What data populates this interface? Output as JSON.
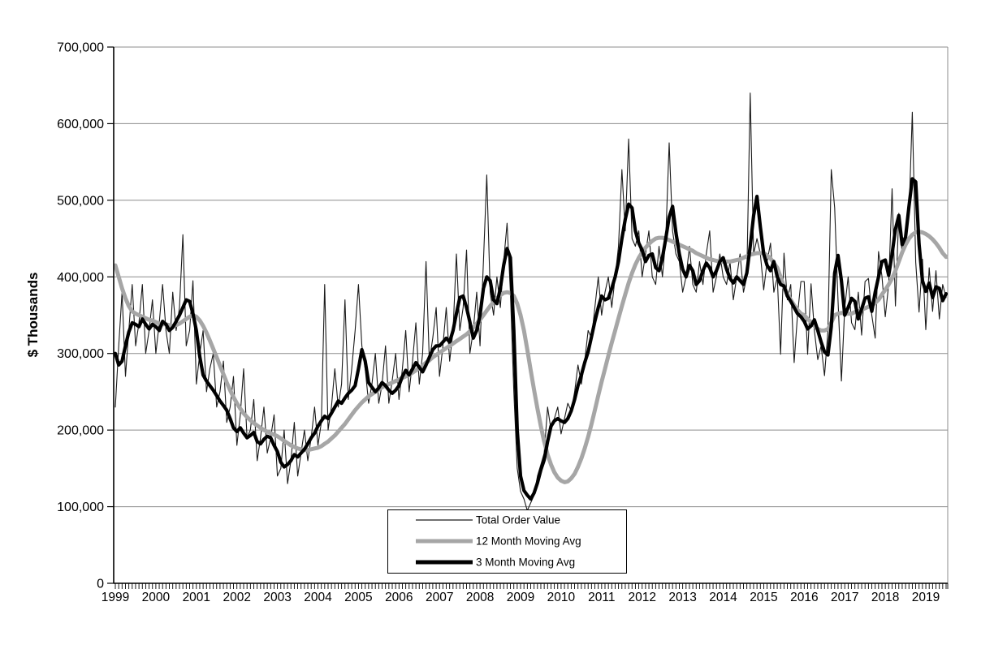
{
  "chart_data": {
    "type": "line",
    "title": "",
    "ylabel": "$ Thousands",
    "xlabel": "",
    "ylim": [
      0,
      700000
    ],
    "ytick_interval": 100000,
    "grid": "horizontal",
    "legend_position": "bottom-center-inside",
    "x_unit": "month",
    "x_start": "1999-01",
    "x_end": "2019-07",
    "n_points": 247,
    "x_tick_labels": [
      "1999",
      "2000",
      "2001",
      "2002",
      "2003",
      "2004",
      "2005",
      "2006",
      "2007",
      "2008",
      "2009",
      "2010",
      "2011",
      "2012",
      "2013",
      "2014",
      "2015",
      "2016",
      "2017",
      "2018",
      "2019"
    ],
    "series": [
      {
        "name": "Total Order Value",
        "color": "#1a1a1a",
        "width": 1.1,
        "values": [
          230000,
          310000,
          380000,
          270000,
          330000,
          390000,
          310000,
          340000,
          390000,
          300000,
          330000,
          370000,
          300000,
          340000,
          390000,
          330000,
          300000,
          380000,
          330000,
          360000,
          455000,
          310000,
          330000,
          395000,
          260000,
          300000,
          330000,
          250000,
          280000,
          300000,
          230000,
          250000,
          290000,
          210000,
          230000,
          270000,
          180000,
          220000,
          280000,
          190000,
          200000,
          240000,
          160000,
          190000,
          230000,
          170000,
          190000,
          220000,
          140000,
          150000,
          200000,
          130000,
          160000,
          210000,
          140000,
          170000,
          200000,
          160000,
          190000,
          230000,
          180000,
          210000,
          390000,
          200000,
          230000,
          280000,
          230000,
          260000,
          370000,
          240000,
          280000,
          330000,
          390000,
          310000,
          280000,
          235000,
          260000,
          300000,
          235000,
          260000,
          310000,
          235000,
          265000,
          300000,
          240000,
          280000,
          330000,
          250000,
          290000,
          340000,
          260000,
          300000,
          420000,
          290000,
          320000,
          360000,
          270000,
          310000,
          360000,
          290000,
          330000,
          430000,
          330000,
          360000,
          435000,
          300000,
          330000,
          380000,
          310000,
          420000,
          533000,
          380000,
          350000,
          400000,
          360000,
          420000,
          470000,
          380000,
          250000,
          150000,
          120000,
          110000,
          95000,
          105000,
          115000,
          140000,
          155000,
          170000,
          230000,
          200000,
          215000,
          230000,
          195000,
          215000,
          235000,
          225000,
          250000,
          285000,
          260000,
          290000,
          330000,
          320000,
          360000,
          400000,
          350000,
          380000,
          400000,
          360000,
          400000,
          440000,
          540000,
          460000,
          580000,
          450000,
          440000,
          460000,
          400000,
          430000,
          460000,
          400000,
          390000,
          440000,
          400000,
          450000,
          575000,
          460000,
          430000,
          420000,
          380000,
          400000,
          440000,
          390000,
          380000,
          420000,
          390000,
          430000,
          460000,
          380000,
          400000,
          430000,
          400000,
          390000,
          420000,
          370000,
          400000,
          430000,
          380000,
          400000,
          640000,
          430000,
          450000,
          430000,
          383000,
          420000,
          444000,
          380000,
          400000,
          299000,
          431000,
          370000,
          390000,
          288000,
          350000,
          394000,
          394000,
          299000,
          391000,
          330000,
          292000,
          310000,
          271000,
          330000,
          540000,
          490000,
          370000,
          264000,
          360000,
          400000,
          340000,
          331000,
          380000,
          324000,
          394000,
          398000,
          350000,
          320000,
          433000,
          401000,
          348000,
          390000,
          515000,
          362000,
          483000,
          430000,
          460000,
          480000,
          615000,
          419000,
          354000,
          423000,
          331000,
          412000,
          355000,
          408000,
          345000,
          390000,
          373000
        ]
      },
      {
        "name": "12 Month Moving Avg",
        "color": "#a6a6a6",
        "width": 5,
        "values": [
          415000,
          400000,
          385000,
          372000,
          362000,
          355000,
          352000,
          350000,
          348000,
          346000,
          344000,
          343000,
          341000,
          339000,
          338000,
          338000,
          337000,
          336000,
          337000,
          339000,
          342000,
          345000,
          348000,
          350000,
          348000,
          343000,
          336000,
          327000,
          317000,
          306000,
          295000,
          284000,
          273000,
          262000,
          252000,
          243000,
          235000,
          228000,
          222000,
          217000,
          213000,
          209000,
          206000,
          203000,
          200000,
          198000,
          196000,
          194000,
          192000,
          189000,
          186000,
          183000,
          180000,
          178000,
          176000,
          175000,
          174000,
          174000,
          175000,
          176000,
          177000,
          179000,
          182000,
          185000,
          189000,
          193000,
          198000,
          203000,
          208000,
          214000,
          220000,
          226000,
          231000,
          236000,
          240000,
          244000,
          247000,
          250000,
          253000,
          256000,
          258000,
          260000,
          262000,
          264000,
          266000,
          268000,
          270000,
          272000,
          275000,
          278000,
          281000,
          284000,
          288000,
          291000,
          295000,
          298000,
          301000,
          304000,
          307000,
          310000,
          313000,
          316000,
          319000,
          322000,
          325000,
          329000,
          334000,
          339000,
          344000,
          350000,
          356000,
          362000,
          367000,
          372000,
          376000,
          379000,
          380000,
          379000,
          375000,
          365000,
          350000,
          330000,
          305000,
          278000,
          252000,
          228000,
          205000,
          185000,
          168000,
          155000,
          145000,
          138000,
          134000,
          132000,
          133000,
          137000,
          143000,
          152000,
          163000,
          176000,
          191000,
          208000,
          226000,
          245000,
          263000,
          280000,
          297000,
          314000,
          330000,
          346000,
          362000,
          377000,
          392000,
          405000,
          416000,
          425000,
          432000,
          438000,
          443000,
          447000,
          450000,
          451000,
          451000,
          450000,
          448000,
          446000,
          444000,
          442000,
          440000,
          438000,
          436000,
          434000,
          431000,
          429000,
          427000,
          425000,
          423000,
          422000,
          421000,
          420000,
          420000,
          420000,
          420000,
          421000,
          422000,
          423000,
          425000,
          427000,
          429000,
          430000,
          431000,
          431000,
          431000,
          428000,
          424000,
          418000,
          412000,
          400000,
          387000,
          378000,
          370000,
          363000,
          357000,
          352000,
          350000,
          345000,
          341000,
          336000,
          332000,
          330000,
          330000,
          332000,
          340000,
          350000,
          352000,
          353000,
          352000,
          352000,
          352000,
          354000,
          355000,
          357000,
          359000,
          361000,
          363000,
          366000,
          370000,
          377000,
          383000,
          390000,
          398000,
          408000,
          420000,
          432000,
          442000,
          450000,
          455000,
          458000,
          459000,
          458000,
          456000,
          453000,
          449000,
          444000,
          438000,
          431000,
          426000
        ]
      },
      {
        "name": "3 Month Moving Avg",
        "color": "#000000",
        "width": 4.2,
        "values": [
          300000,
          285000,
          290000,
          310000,
          328000,
          340000,
          338000,
          335000,
          345000,
          338000,
          332000,
          338000,
          335000,
          330000,
          342000,
          338000,
          330000,
          334000,
          342000,
          350000,
          360000,
          370000,
          368000,
          352000,
          330000,
          296000,
          272000,
          264000,
          258000,
          252000,
          245000,
          238000,
          232000,
          226000,
          215000,
          203000,
          198000,
          203000,
          196000,
          190000,
          193000,
          197000,
          185000,
          182000,
          188000,
          192000,
          190000,
          180000,
          172000,
          158000,
          152000,
          155000,
          160000,
          168000,
          165000,
          170000,
          175000,
          182000,
          190000,
          196000,
          205000,
          212000,
          218000,
          215000,
          222000,
          230000,
          238000,
          235000,
          242000,
          248000,
          252000,
          258000,
          280000,
          305000,
          290000,
          262000,
          256000,
          250000,
          255000,
          262000,
          258000,
          252000,
          248000,
          252000,
          258000,
          270000,
          278000,
          272000,
          280000,
          288000,
          282000,
          276000,
          285000,
          295000,
          305000,
          310000,
          310000,
          315000,
          320000,
          315000,
          330000,
          352000,
          373000,
          375000,
          360000,
          341000,
          320000,
          330000,
          350000,
          385000,
          400000,
          395000,
          370000,
          365000,
          385000,
          415000,
          437000,
          425000,
          330000,
          200000,
          140000,
          121000,
          115000,
          110000,
          118000,
          131000,
          148000,
          161000,
          185000,
          205000,
          212000,
          215000,
          212000,
          210000,
          215000,
          225000,
          240000,
          258000,
          272000,
          288000,
          302000,
          322000,
          342000,
          360000,
          375000,
          370000,
          372000,
          385000,
          400000,
          420000,
          450000,
          475000,
          495000,
          490000,
          460000,
          444000,
          435000,
          420000,
          428000,
          430000,
          412000,
          408000,
          425000,
          450000,
          478000,
          492000,
          458000,
          430000,
          410000,
          400000,
          415000,
          408000,
          390000,
          395000,
          408000,
          418000,
          412000,
          400000,
          408000,
          420000,
          425000,
          410000,
          398000,
          392000,
          400000,
          395000,
          390000,
          405000,
          440000,
          480000,
          505000,
          465000,
          430000,
          415000,
          408000,
          420000,
          400000,
          390000,
          388000,
          375000,
          368000,
          360000,
          352000,
          348000,
          342000,
          332000,
          336000,
          344000,
          330000,
          315000,
          302000,
          298000,
          335000,
          405000,
          428000,
          395000,
          350000,
          360000,
          372000,
          368000,
          345000,
          358000,
          372000,
          374000,
          355000,
          380000,
          400000,
          420000,
          422000,
          402000,
          430000,
          462000,
          480000,
          442000,
          452000,
          492000,
          528000,
          524000,
          443000,
          395000,
          381000,
          392000,
          373000,
          387000,
          385000,
          369000,
          378000
        ]
      }
    ]
  }
}
